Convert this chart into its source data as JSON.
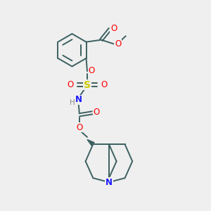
{
  "bg_color": "#efefef",
  "bond_color": "#3d6060",
  "atom_colors": {
    "O": "#ff0000",
    "S": "#cccc00",
    "N": "#1a1aff",
    "H": "#888888",
    "C": "#3d6060"
  },
  "figsize": [
    3.0,
    3.0
  ],
  "dpi": 100
}
